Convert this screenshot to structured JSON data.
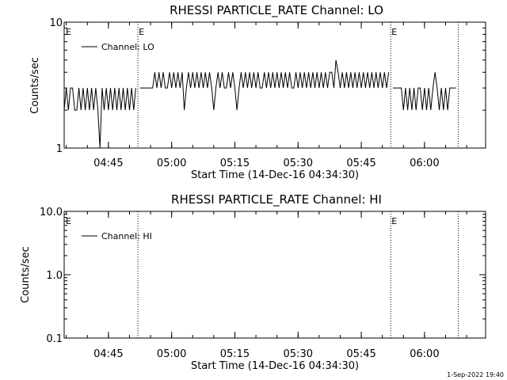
{
  "footer_date": "1-Sep-2022 19:40",
  "chart_data": [
    {
      "type": "line",
      "title": "RHESSI PARTICLE_RATE Channel: LO",
      "xlabel": "Start Time (14-Dec-16 04:34:30)",
      "ylabel": "Counts/sec",
      "y_scale": "log",
      "ylim": [
        1,
        10
      ],
      "xlim": [
        "04:34:30",
        "06:14:30"
      ],
      "x_ticks": [
        "04:45",
        "05:00",
        "05:15",
        "05:30",
        "05:45",
        "06:00"
      ],
      "y_tick_labels": [
        {
          "value": 1,
          "label": "1"
        },
        {
          "value": 10,
          "label": "10"
        }
      ],
      "legend": {
        "position": "top-left",
        "entries": [
          "Channel: LO"
        ]
      },
      "eclipse_markers": [
        {
          "time": "04:52:00",
          "label": "E"
        },
        {
          "time": "05:52:00",
          "label": "E"
        },
        {
          "time": "06:08:00",
          "label": ""
        }
      ],
      "eclipse_label_at_start": "E",
      "series": [
        {
          "name": "Channel: LO",
          "segments": [
            [
              [
                "04:34:30",
                2
              ],
              [
                "04:35:00",
                3
              ],
              [
                "04:35:30",
                2
              ],
              [
                "04:36:00",
                3
              ],
              [
                "04:36:30",
                3
              ],
              [
                "04:37:00",
                2
              ],
              [
                "04:37:30",
                2
              ],
              [
                "04:38:00",
                3
              ],
              [
                "04:38:30",
                2
              ],
              [
                "04:39:00",
                3
              ],
              [
                "04:39:30",
                2
              ],
              [
                "04:40:00",
                3
              ],
              [
                "04:40:30",
                2
              ],
              [
                "04:41:00",
                3
              ],
              [
                "04:41:30",
                2
              ],
              [
                "04:42:00",
                3
              ],
              [
                "04:42:30",
                2
              ],
              [
                "04:43:00",
                1
              ],
              [
                "04:43:30",
                3
              ],
              [
                "04:44:00",
                2
              ],
              [
                "04:44:30",
                3
              ],
              [
                "04:45:00",
                2
              ],
              [
                "04:45:30",
                3
              ],
              [
                "04:46:00",
                2
              ],
              [
                "04:46:30",
                3
              ],
              [
                "04:47:00",
                2
              ],
              [
                "04:47:30",
                3
              ],
              [
                "04:48:00",
                2
              ],
              [
                "04:48:30",
                3
              ],
              [
                "04:49:00",
                2
              ],
              [
                "04:49:30",
                3
              ],
              [
                "04:50:00",
                2
              ],
              [
                "04:50:30",
                3
              ],
              [
                "04:51:00",
                2
              ],
              [
                "04:51:30",
                3
              ]
            ],
            [
              [
                "04:52:30",
                3
              ],
              [
                "04:53:30",
                3
              ],
              [
                "04:54:00",
                3
              ],
              [
                "04:55:00",
                3
              ],
              [
                "04:55:30",
                3
              ],
              [
                "04:56:00",
                4
              ],
              [
                "04:56:30",
                3
              ],
              [
                "04:57:00",
                4
              ],
              [
                "04:57:30",
                3
              ],
              [
                "04:58:00",
                4
              ],
              [
                "04:58:30",
                3
              ],
              [
                "04:59:00",
                3
              ],
              [
                "04:59:30",
                4
              ],
              [
                "05:00:00",
                3
              ],
              [
                "05:00:30",
                4
              ],
              [
                "05:01:00",
                3
              ],
              [
                "05:01:30",
                4
              ],
              [
                "05:02:00",
                3
              ],
              [
                "05:02:30",
                4
              ],
              [
                "05:03:00",
                2
              ],
              [
                "05:03:30",
                3
              ],
              [
                "05:04:00",
                4
              ],
              [
                "05:04:30",
                3
              ],
              [
                "05:05:00",
                4
              ],
              [
                "05:05:30",
                3
              ],
              [
                "05:06:00",
                4
              ],
              [
                "05:06:30",
                3
              ],
              [
                "05:07:00",
                4
              ],
              [
                "05:07:30",
                3
              ],
              [
                "05:08:00",
                4
              ],
              [
                "05:08:30",
                3
              ],
              [
                "05:09:00",
                4
              ],
              [
                "05:09:30",
                3
              ],
              [
                "05:10:00",
                2
              ],
              [
                "05:10:30",
                3
              ],
              [
                "05:11:00",
                4
              ],
              [
                "05:11:30",
                3
              ],
              [
                "05:12:00",
                4
              ],
              [
                "05:12:30",
                3
              ],
              [
                "05:13:00",
                3
              ],
              [
                "05:13:30",
                4
              ],
              [
                "05:14:00",
                3
              ],
              [
                "05:14:30",
                4
              ],
              [
                "05:15:00",
                3
              ],
              [
                "05:15:30",
                2
              ],
              [
                "05:16:00",
                3
              ],
              [
                "05:16:30",
                4
              ],
              [
                "05:17:00",
                3
              ],
              [
                "05:17:30",
                4
              ],
              [
                "05:18:00",
                3
              ],
              [
                "05:18:30",
                4
              ],
              [
                "05:19:00",
                3
              ],
              [
                "05:19:30",
                4
              ],
              [
                "05:20:00",
                3
              ],
              [
                "05:20:30",
                4
              ],
              [
                "05:21:00",
                3
              ],
              [
                "05:21:30",
                3
              ],
              [
                "05:22:00",
                4
              ],
              [
                "05:22:30",
                3
              ],
              [
                "05:23:00",
                4
              ],
              [
                "05:23:30",
                3
              ],
              [
                "05:24:00",
                4
              ],
              [
                "05:24:30",
                3
              ],
              [
                "05:25:00",
                4
              ],
              [
                "05:25:30",
                3
              ],
              [
                "05:26:00",
                4
              ],
              [
                "05:26:30",
                3
              ],
              [
                "05:27:00",
                4
              ],
              [
                "05:27:30",
                3
              ],
              [
                "05:28:00",
                4
              ],
              [
                "05:28:30",
                3
              ],
              [
                "05:29:00",
                3
              ],
              [
                "05:29:30",
                4
              ],
              [
                "05:30:00",
                3
              ],
              [
                "05:30:30",
                4
              ],
              [
                "05:31:00",
                3
              ],
              [
                "05:31:30",
                4
              ],
              [
                "05:32:00",
                3
              ],
              [
                "05:32:30",
                4
              ],
              [
                "05:33:00",
                3
              ],
              [
                "05:33:30",
                4
              ],
              [
                "05:34:00",
                3
              ],
              [
                "05:34:30",
                4
              ],
              [
                "05:35:00",
                3
              ],
              [
                "05:35:30",
                4
              ],
              [
                "05:36:00",
                3
              ],
              [
                "05:36:30",
                4
              ],
              [
                "05:37:00",
                3
              ],
              [
                "05:37:30",
                4
              ],
              [
                "05:38:00",
                4
              ],
              [
                "05:38:30",
                3
              ],
              [
                "05:39:00",
                5
              ],
              [
                "05:39:30",
                4
              ],
              [
                "05:40:00",
                3
              ],
              [
                "05:40:30",
                4
              ],
              [
                "05:41:00",
                3
              ],
              [
                "05:41:30",
                4
              ],
              [
                "05:42:00",
                3
              ],
              [
                "05:42:30",
                4
              ],
              [
                "05:43:00",
                3
              ],
              [
                "05:43:30",
                4
              ],
              [
                "05:44:00",
                3
              ],
              [
                "05:44:30",
                4
              ],
              [
                "05:45:00",
                3
              ],
              [
                "05:45:30",
                4
              ],
              [
                "05:46:00",
                3
              ],
              [
                "05:46:30",
                4
              ],
              [
                "05:47:00",
                3
              ],
              [
                "05:47:30",
                4
              ],
              [
                "05:48:00",
                3
              ],
              [
                "05:48:30",
                4
              ],
              [
                "05:49:00",
                3
              ],
              [
                "05:49:30",
                4
              ],
              [
                "05:50:00",
                3
              ],
              [
                "05:50:30",
                4
              ],
              [
                "05:51:00",
                3
              ],
              [
                "05:51:30",
                4
              ]
            ],
            [
              [
                "05:52:30",
                3
              ],
              [
                "05:53:00",
                3
              ],
              [
                "05:53:30",
                3
              ],
              [
                "05:54:00",
                3
              ],
              [
                "05:54:30",
                3
              ],
              [
                "05:55:00",
                2
              ],
              [
                "05:55:30",
                3
              ],
              [
                "05:56:00",
                2
              ],
              [
                "05:56:30",
                3
              ],
              [
                "05:57:00",
                2
              ],
              [
                "05:57:30",
                3
              ],
              [
                "05:58:00",
                2
              ],
              [
                "05:58:30",
                3
              ],
              [
                "05:59:00",
                3
              ],
              [
                "05:59:30",
                2
              ],
              [
                "06:00:00",
                3
              ],
              [
                "06:00:30",
                2
              ],
              [
                "06:01:00",
                3
              ],
              [
                "06:01:30",
                2
              ],
              [
                "06:02:00",
                3
              ],
              [
                "06:02:30",
                4
              ],
              [
                "06:03:00",
                3
              ],
              [
                "06:03:30",
                2
              ],
              [
                "06:04:00",
                3
              ],
              [
                "06:04:30",
                2
              ],
              [
                "06:05:00",
                3
              ],
              [
                "06:05:30",
                2
              ],
              [
                "06:06:00",
                3
              ],
              [
                "06:06:30",
                3
              ],
              [
                "06:07:00",
                3
              ],
              [
                "06:07:30",
                3
              ]
            ]
          ]
        }
      ]
    },
    {
      "type": "line",
      "title": "RHESSI PARTICLE_RATE Channel: HI",
      "xlabel": "Start Time (14-Dec-16 04:34:30)",
      "ylabel": "Counts/sec",
      "y_scale": "log",
      "ylim": [
        0.1,
        10
      ],
      "xlim": [
        "04:34:30",
        "06:14:30"
      ],
      "x_ticks": [
        "04:45",
        "05:00",
        "05:15",
        "05:30",
        "05:45",
        "06:00"
      ],
      "y_tick_labels": [
        {
          "value": 0.1,
          "label": "0.1"
        },
        {
          "value": 1,
          "label": "1.0"
        },
        {
          "value": 10,
          "label": "10.0"
        }
      ],
      "legend": {
        "position": "top-left",
        "entries": [
          "Channel: HI"
        ]
      },
      "eclipse_markers": [
        {
          "time": "04:52:00",
          "label": ""
        },
        {
          "time": "05:52:00",
          "label": "E"
        },
        {
          "time": "06:08:00",
          "label": ""
        }
      ],
      "eclipse_label_at_start": "E",
      "series": [
        {
          "name": "Channel: HI",
          "segments": []
        }
      ]
    }
  ]
}
